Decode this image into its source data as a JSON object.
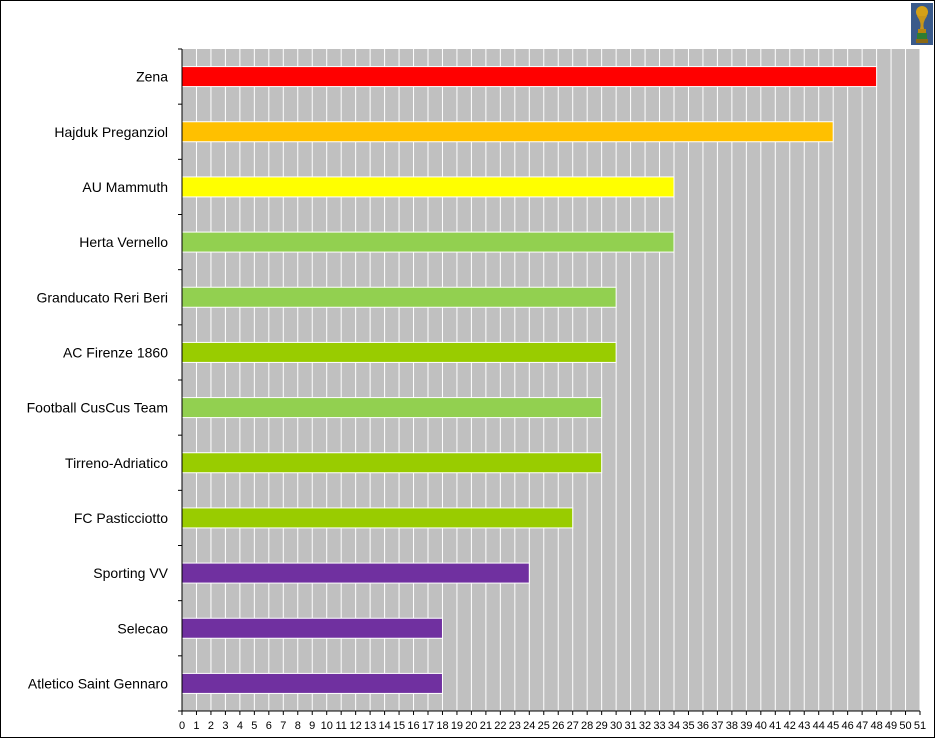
{
  "chart_data": {
    "type": "bar",
    "orientation": "horizontal",
    "title": "",
    "xlabel": "",
    "ylabel": "",
    "categories": [
      "Zena",
      "Hajduk Preganziol",
      "AU Mammuth",
      "Herta Vernello",
      "Granducato Reri Beri",
      "AC Firenze 1860",
      "Football CusCus Team",
      "Tirreno-Adriatico",
      "FC Pasticciotto",
      "Sporting VV",
      "Selecao",
      "Atletico Saint Gennaro"
    ],
    "values": [
      48,
      45,
      34,
      34,
      30,
      30,
      29,
      29,
      27,
      24,
      18,
      18
    ],
    "bar_colors": [
      "#ff0000",
      "#ffc000",
      "#ffff00",
      "#92d050",
      "#92d050",
      "#99cc00",
      "#92d050",
      "#99cc00",
      "#99cc00",
      "#7030a0",
      "#7030a0",
      "#7030a0"
    ],
    "xlim": [
      0,
      51
    ],
    "xticks": [
      0,
      1,
      2,
      3,
      4,
      5,
      6,
      7,
      8,
      9,
      10,
      11,
      12,
      13,
      14,
      15,
      16,
      17,
      18,
      19,
      20,
      21,
      22,
      23,
      24,
      25,
      26,
      27,
      28,
      29,
      30,
      31,
      32,
      33,
      34,
      35,
      36,
      37,
      38,
      39,
      40,
      41,
      42,
      43,
      44,
      45,
      46,
      47,
      48,
      49,
      50,
      51
    ],
    "grid": true,
    "plot_background": "#c0c0c0",
    "grid_color": "#ffffff",
    "legend": "none"
  },
  "decoration": {
    "trophy_icon": "world-cup-trophy-icon"
  }
}
